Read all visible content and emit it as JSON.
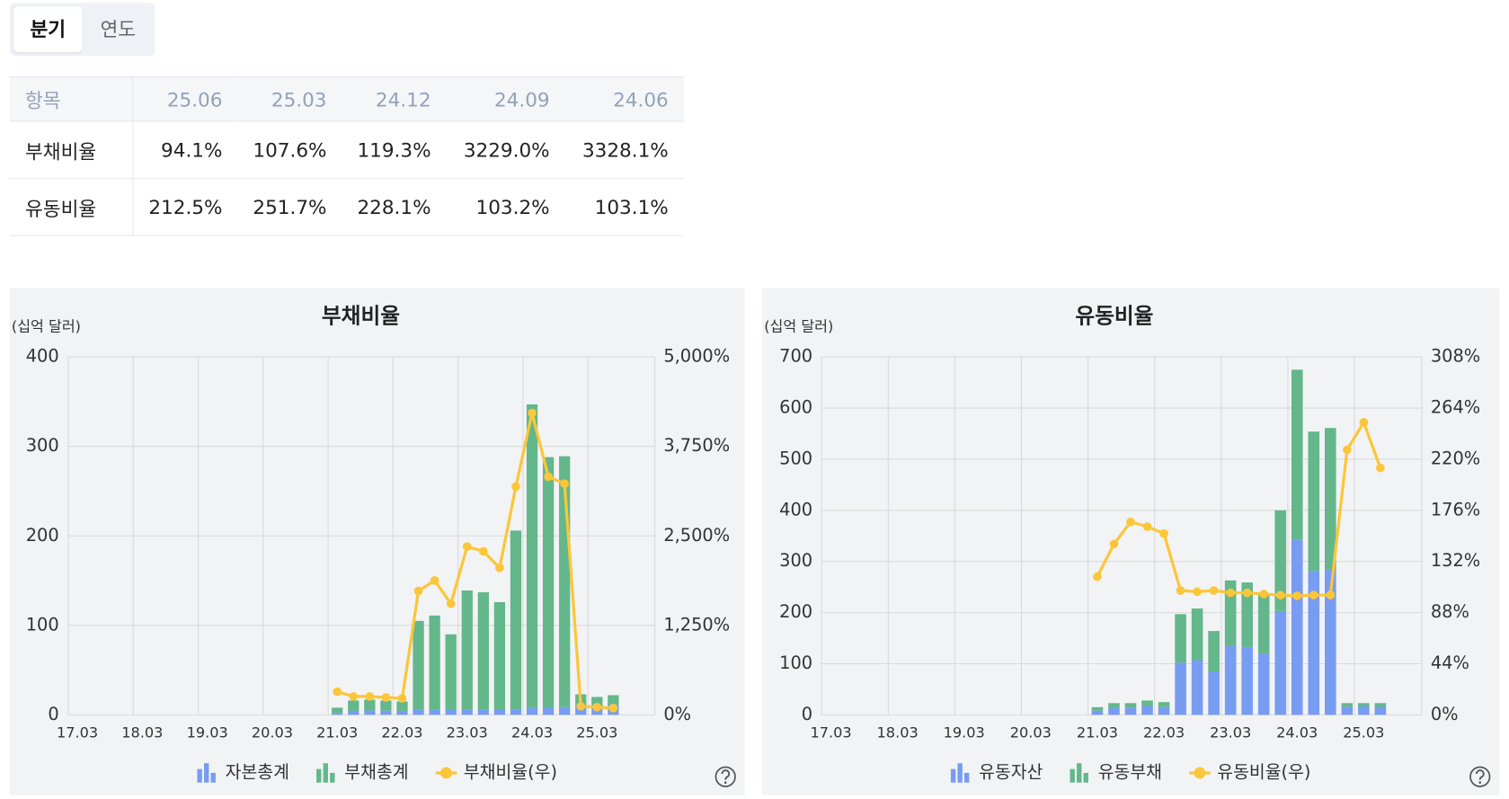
{
  "tabs": [
    "분기",
    "연도"
  ],
  "table": {
    "header": [
      "항목",
      "25.06",
      "25.03",
      "24.12",
      "24.09",
      "24.06"
    ],
    "rows": [
      [
        "부채비율",
        "94.1%",
        "107.6%",
        "119.3%",
        "3229.0%",
        "3328.1%"
      ],
      [
        "유동비율",
        "212.5%",
        "251.7%",
        "228.1%",
        "103.2%",
        "103.1%"
      ]
    ]
  },
  "chart_data": [
    {
      "type": "combo",
      "title": "부채비율",
      "y_label": "(십억 달러)",
      "stacked": true,
      "grid": true,
      "categories": [
        "17.03",
        null,
        null,
        null,
        "18.03",
        null,
        null,
        null,
        "19.03",
        null,
        null,
        null,
        "20.03",
        null,
        null,
        null,
        "21.03",
        null,
        null,
        null,
        "22.03",
        null,
        null,
        null,
        "23.03",
        null,
        null,
        null,
        "24.03",
        null,
        null,
        null,
        "25.03",
        null
      ],
      "series": [
        {
          "name": "자본총계",
          "type": "bar",
          "color": "#779cf2",
          "values": [
            null,
            null,
            null,
            null,
            null,
            null,
            null,
            null,
            null,
            null,
            null,
            null,
            null,
            null,
            null,
            null,
            2,
            4.5,
            5,
            4.7,
            4.5,
            5.7,
            5.6,
            5.4,
            5.7,
            5.7,
            5.9,
            6.3,
            8.0,
            8.4,
            8.7,
            10.5,
            9.6,
            11.3
          ]
        },
        {
          "name": "부채총계",
          "type": "bar",
          "color": "#63b78b",
          "values": [
            null,
            null,
            null,
            null,
            null,
            null,
            null,
            null,
            null,
            null,
            null,
            null,
            null,
            null,
            null,
            null,
            6,
            11.5,
            12,
            11.3,
            10.5,
            99.3,
            105.4,
            84.6,
            133.3,
            131.3,
            120.1,
            199.7,
            339,
            279.6,
            280.3,
            12.5,
            10.4,
            10.7
          ]
        },
        {
          "name": "부채비율(우)",
          "type": "line",
          "axis": "y2",
          "color": "#fcc63a",
          "values": [
            null,
            null,
            null,
            null,
            null,
            null,
            null,
            null,
            null,
            null,
            null,
            null,
            null,
            null,
            null,
            null,
            324,
            257,
            257,
            243,
            230,
            1730,
            1878,
            1554,
            2351,
            2284,
            2054,
            3189,
            4216,
            3328.1,
            3229.0,
            119.3,
            107.6,
            94.1
          ]
        }
      ],
      "ylim": [
        0,
        400
      ],
      "yticks": [
        0,
        100,
        200,
        300,
        400
      ],
      "y2lim": [
        0,
        5000
      ],
      "y2ticks": [
        {
          "value": 0,
          "label": "0%"
        },
        {
          "value": 1250,
          "label": "1,250%"
        },
        {
          "value": 2500,
          "label": "2,500%"
        },
        {
          "value": 3750,
          "label": "3,750%"
        },
        {
          "value": 5000,
          "label": "5,000%"
        }
      ]
    },
    {
      "type": "combo",
      "title": "유동비율",
      "y_label": "(십억 달러)",
      "stacked": true,
      "grid": true,
      "categories": [
        "17.03",
        null,
        null,
        null,
        "18.03",
        null,
        null,
        null,
        "19.03",
        null,
        null,
        null,
        "20.03",
        null,
        null,
        null,
        "21.03",
        null,
        null,
        null,
        "22.03",
        null,
        null,
        null,
        "23.03",
        null,
        null,
        null,
        "24.03",
        null,
        null,
        null,
        "25.03",
        null
      ],
      "series": [
        {
          "name": "유동자산",
          "type": "bar",
          "color": "#779cf2",
          "values": [
            null,
            null,
            null,
            null,
            null,
            null,
            null,
            null,
            null,
            null,
            null,
            null,
            null,
            null,
            null,
            null,
            8.2,
            13.7,
            14.4,
            17.3,
            15.2,
            102,
            107,
            85,
            135,
            133,
            120,
            203,
            342,
            281.3,
            284.9,
            16,
            16.5,
            15.6
          ]
        },
        {
          "name": "유동부채",
          "type": "bar",
          "color": "#63b78b",
          "values": [
            null,
            null,
            null,
            null,
            null,
            null,
            null,
            null,
            null,
            null,
            null,
            null,
            null,
            null,
            null,
            null,
            6.8,
            9.3,
            8.6,
            10.7,
            9.8,
            95,
            101,
            79,
            128,
            126,
            116,
            197,
            333,
            272.7,
            276.1,
            7,
            6.5,
            7.4
          ]
        },
        {
          "name": "유동비율(우)",
          "type": "line",
          "axis": "y2",
          "color": "#fcc63a",
          "values": [
            null,
            null,
            null,
            null,
            null,
            null,
            null,
            null,
            null,
            null,
            null,
            null,
            null,
            null,
            null,
            null,
            119,
            147,
            166,
            162,
            156,
            107,
            106,
            107,
            105,
            105,
            104,
            103,
            102.4,
            103.1,
            103.2,
            228.1,
            251.7,
            212.5
          ]
        }
      ],
      "ylim": [
        0,
        700
      ],
      "yticks": [
        0,
        100,
        200,
        300,
        400,
        500,
        600,
        700
      ],
      "y2lim": [
        0,
        308
      ],
      "y2ticks": [
        {
          "value": 0,
          "label": "0%"
        },
        {
          "value": 44,
          "label": "44%"
        },
        {
          "value": 88,
          "label": "88%"
        },
        {
          "value": 132,
          "label": "132%"
        },
        {
          "value": 176,
          "label": "176%"
        },
        {
          "value": 220,
          "label": "220%"
        },
        {
          "value": 264,
          "label": "264%"
        },
        {
          "value": 308,
          "label": "308%"
        }
      ]
    }
  ]
}
